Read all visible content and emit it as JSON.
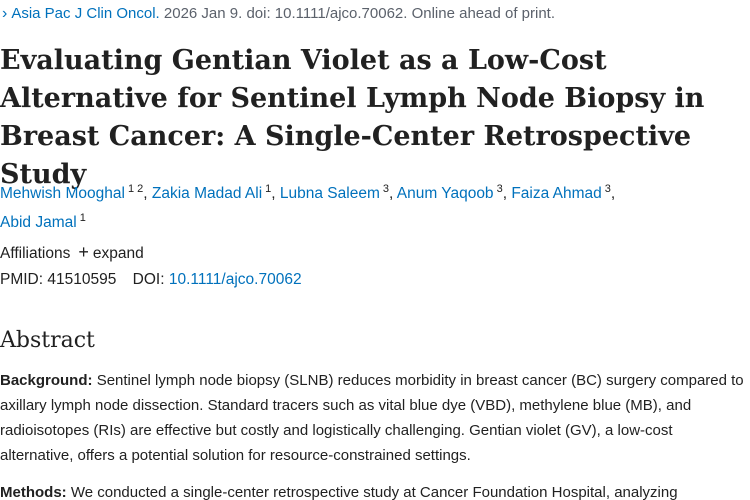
{
  "citation": {
    "journal": "Asia Pac J Clin Oncol.",
    "details": "2026 Jan 9. doi: 10.1111/ajco.70062. Online ahead of print."
  },
  "article": {
    "title": "Evaluating Gentian Violet as a Low-Cost Alternative for Sentinel Lymph Node Biopsy in Breast Cancer: A Single-Center Retrospective Study"
  },
  "authors": [
    {
      "name": "Mehwish Mooghal",
      "affils": "1 2"
    },
    {
      "name": "Zakia Madad Ali",
      "affils": "1"
    },
    {
      "name": "Lubna Saleem",
      "affils": "3"
    },
    {
      "name": "Anum Yaqoob",
      "affils": "3"
    },
    {
      "name": "Faiza Ahmad",
      "affils": "3"
    },
    {
      "name": "Abid Jamal",
      "affils": "1"
    }
  ],
  "affiliations": {
    "label": "Affiliations",
    "expand_label": "expand"
  },
  "ids": {
    "pmid_label": "PMID:",
    "pmid": "41510595",
    "doi_label": "DOI:",
    "doi": "10.1111/ajco.70062"
  },
  "abstract": {
    "heading": "Abstract",
    "background_label": "Background:",
    "background_text": "Sentinel lymph node biopsy (SLNB) reduces morbidity in breast cancer (BC) surgery compared to axillary lymph node dissection. Standard tracers such as vital blue dye (VBD), methylene blue (MB), and radioisotopes (RIs) are effective but costly and logistically challenging. Gentian violet (GV), a low-cost alternative, offers a potential solution for resource-constrained settings.",
    "methods_label": "Methods:",
    "methods_text": "We conducted a single-center retrospective study at Cancer Foundation Hospital, analyzing"
  }
}
